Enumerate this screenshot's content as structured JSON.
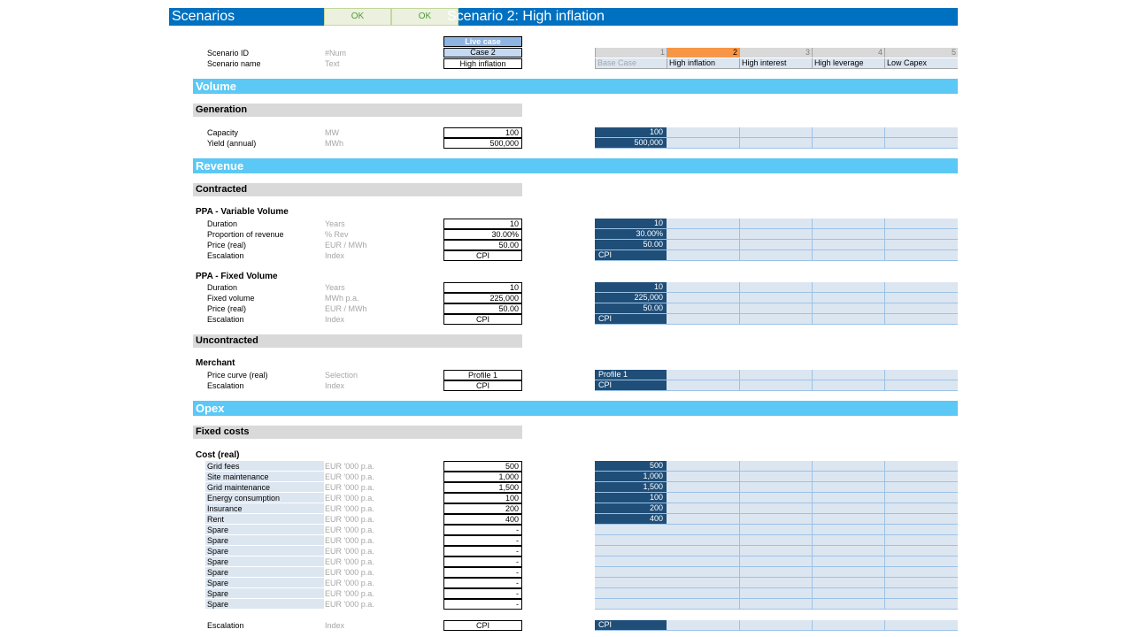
{
  "header": {
    "title": "Scenarios",
    "ok_1": "OK",
    "ok_2": "OK",
    "scenario_title": "Scenario 2: High inflation"
  },
  "live": {
    "head": "Live case",
    "case": "Case 2",
    "name": "High inflation"
  },
  "meta": {
    "scenario_id_label": "Scenario ID",
    "scenario_id_unit": "#Num",
    "scenario_name_label": "Scenario name",
    "scenario_name_unit": "Text"
  },
  "scenarios": {
    "numbers": [
      "1",
      "2",
      "3",
      "4",
      "5"
    ],
    "names": [
      "Base Case",
      "High inflation",
      "High interest",
      "High leverage",
      "Low Capex"
    ]
  },
  "volume": {
    "title": "Volume",
    "generation": "Generation",
    "rows": [
      {
        "label": "Capacity",
        "unit": "MW",
        "value": "100",
        "scenario": "100"
      },
      {
        "label": "Yield (annual)",
        "unit": "MWh",
        "value": "500,000",
        "scenario": "500,000"
      }
    ]
  },
  "revenue": {
    "title": "Revenue",
    "contracted": "Contracted",
    "ppa_variable": {
      "title": "PPA - Variable Volume",
      "rows": [
        {
          "label": "Duration",
          "unit": "Years",
          "value": "10",
          "scenario": "10"
        },
        {
          "label": "Proportion of revenue",
          "unit": "% Rev",
          "value": "30.00%",
          "scenario": "30.00%"
        },
        {
          "label": "Price (real)",
          "unit": "EUR / MWh",
          "value": "50.00",
          "scenario": "50.00"
        },
        {
          "label": "Escalation",
          "unit": "Index",
          "value": "CPI",
          "scenario": "CPI"
        }
      ]
    },
    "ppa_fixed": {
      "title": "PPA - Fixed Volume",
      "rows": [
        {
          "label": "Duration",
          "unit": "Years",
          "value": "10",
          "scenario": "10"
        },
        {
          "label": "Fixed volume",
          "unit": "MWh p.a.",
          "value": "225,000",
          "scenario": "225,000"
        },
        {
          "label": "Price (real)",
          "unit": "EUR / MWh",
          "value": "50.00",
          "scenario": "50.00"
        },
        {
          "label": "Escalation",
          "unit": "Index",
          "value": "CPI",
          "scenario": "CPI"
        }
      ]
    },
    "uncontracted": "Uncontracted",
    "merchant": {
      "title": "Merchant",
      "rows": [
        {
          "label": "Price curve (real)",
          "unit": "Selection",
          "value": "Profile 1",
          "scenario": "Profile 1"
        },
        {
          "label": "Escalation",
          "unit": "Index",
          "value": "CPI",
          "scenario": "CPI"
        }
      ]
    }
  },
  "opex": {
    "title": "Opex",
    "fixed_costs": "Fixed costs",
    "cost_real": "Cost (real)",
    "rows": [
      {
        "label": "Grid fees",
        "unit": "EUR '000 p.a.",
        "value": "500",
        "scenario": "500"
      },
      {
        "label": "Site maintenance",
        "unit": "EUR '000 p.a.",
        "value": "1,000",
        "scenario": "1,000"
      },
      {
        "label": "Grid maintenance",
        "unit": "EUR '000 p.a.",
        "value": "1,500",
        "scenario": "1,500"
      },
      {
        "label": "Energy consumption",
        "unit": "EUR '000 p.a.",
        "value": "100",
        "scenario": "100"
      },
      {
        "label": "Insurance",
        "unit": "EUR '000 p.a.",
        "value": "200",
        "scenario": "200"
      },
      {
        "label": "Rent",
        "unit": "EUR '000 p.a.",
        "value": "400",
        "scenario": "400"
      },
      {
        "label": "Spare",
        "unit": "EUR '000 p.a.",
        "value": "-",
        "scenario": ""
      },
      {
        "label": "Spare",
        "unit": "EUR '000 p.a.",
        "value": "-",
        "scenario": ""
      },
      {
        "label": "Spare",
        "unit": "EUR '000 p.a.",
        "value": "-",
        "scenario": ""
      },
      {
        "label": "Spare",
        "unit": "EUR '000 p.a.",
        "value": "-",
        "scenario": ""
      },
      {
        "label": "Spare",
        "unit": "EUR '000 p.a.",
        "value": "-",
        "scenario": ""
      },
      {
        "label": "Spare",
        "unit": "EUR '000 p.a.",
        "value": "-",
        "scenario": ""
      },
      {
        "label": "Spare",
        "unit": "EUR '000 p.a.",
        "value": "-",
        "scenario": ""
      },
      {
        "label": "Spare",
        "unit": "EUR '000 p.a.",
        "value": "-",
        "scenario": ""
      }
    ],
    "escalation": {
      "label": "Escalation",
      "unit": "Index",
      "value": "CPI",
      "scenario": "CPI"
    }
  },
  "colors": {
    "title_bar": "#0070c0",
    "section_bar": "#5bc8f5",
    "active_scenario": "#f79646",
    "scenario_dark": "#1f4e78",
    "scenario_light": "#dce6f1",
    "ok_green": "#ebf1de"
  }
}
